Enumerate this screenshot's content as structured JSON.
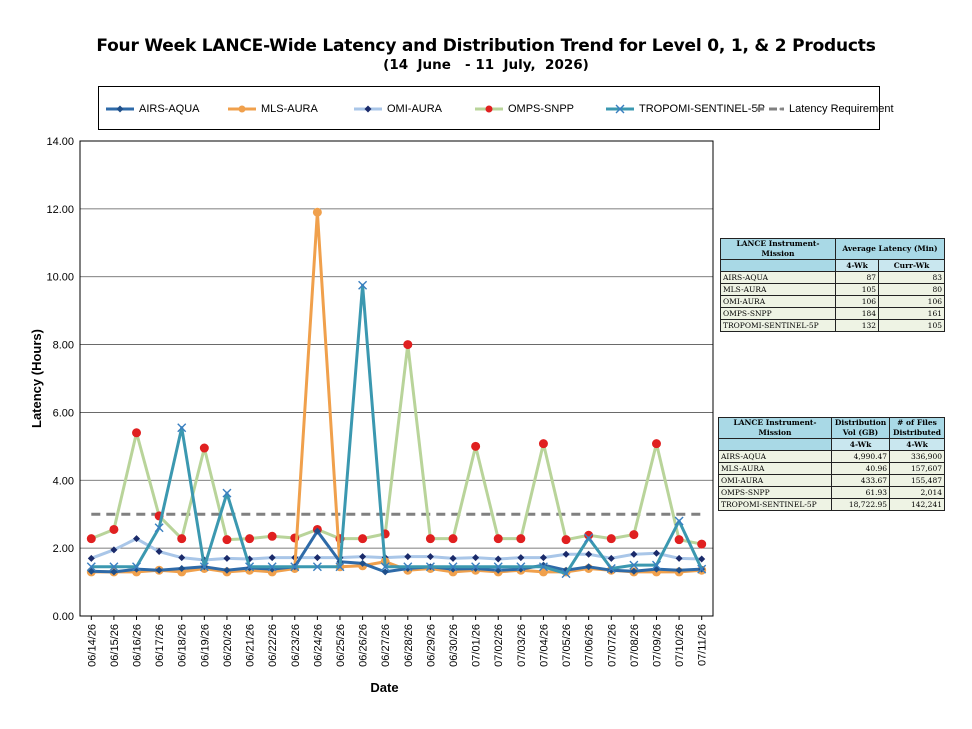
{
  "title": "Four Week LANCE-Wide Latency and Distribution Trend for Level 0, 1, & 2 Products",
  "subtitle": "(14  June   - 11  July,  2026)",
  "legend": [
    {
      "label": "AIRS-AQUA",
      "color": "#2e6aa8",
      "marker": "diamond-icon"
    },
    {
      "label": "MLS-AURA",
      "color": "#f0a04c",
      "marker": "circle-icon"
    },
    {
      "label": "OMI-AURA",
      "color": "#a9c6e8",
      "marker": "diamond-icon"
    },
    {
      "label": "OMPS-SNPP",
      "color": "#b9d49a",
      "marker": "circle-icon"
    },
    {
      "label": "TROPOMI-SENTINEL-5P",
      "color": "#3b98b0",
      "marker": "x-icon"
    },
    {
      "label": "Latency Requirement",
      "color": "#808080",
      "marker": "dash-icon"
    }
  ],
  "chart_data": {
    "type": "line",
    "title": "Four Week LANCE-Wide Latency and Distribution Trend for Level 0, 1, & 2 Products",
    "xlabel": "Date",
    "ylabel": "Latency (Hours)",
    "ylim": [
      0,
      14
    ],
    "y_ticks": [
      "0.00",
      "2.00",
      "4.00",
      "6.00",
      "8.00",
      "10.00",
      "12.00",
      "14.00"
    ],
    "x": [
      "06/14/26",
      "06/15/26",
      "06/16/26",
      "06/17/26",
      "06/18/26",
      "06/19/26",
      "06/20/26",
      "06/21/26",
      "06/22/26",
      "06/23/26",
      "06/24/26",
      "06/25/26",
      "06/26/26",
      "06/27/26",
      "06/28/26",
      "06/29/26",
      "06/30/26",
      "07/01/26",
      "07/02/26",
      "07/03/26",
      "07/04/26",
      "07/05/26",
      "07/06/26",
      "07/07/26",
      "07/08/26",
      "07/09/26",
      "07/10/26",
      "07/11/26"
    ],
    "grid": "horizontal",
    "series": [
      {
        "name": "AIRS-AQUA",
        "color": "#2e6aa8",
        "marker": "diamond",
        "values": [
          1.32,
          1.3,
          1.38,
          1.35,
          1.4,
          1.45,
          1.35,
          1.42,
          1.38,
          1.45,
          2.5,
          1.6,
          1.55,
          1.3,
          1.4,
          1.45,
          1.38,
          1.4,
          1.35,
          1.38,
          1.5,
          1.35,
          1.45,
          1.35,
          1.32,
          1.38,
          1.35,
          1.38
        ]
      },
      {
        "name": "MLS-AURA",
        "color": "#f0a04c",
        "marker": "circle",
        "values": [
          1.3,
          1.3,
          1.3,
          1.35,
          1.3,
          1.4,
          1.3,
          1.35,
          1.3,
          1.4,
          11.9,
          1.45,
          1.48,
          1.6,
          1.35,
          1.4,
          1.3,
          1.35,
          1.3,
          1.35,
          1.3,
          1.3,
          1.4,
          1.35,
          1.3,
          1.3,
          1.3,
          1.35
        ]
      },
      {
        "name": "OMI-AURA",
        "color": "#a9c6e8",
        "marker": "diamond",
        "values": [
          1.7,
          1.95,
          2.28,
          1.9,
          1.72,
          1.65,
          1.7,
          1.68,
          1.72,
          1.72,
          1.72,
          1.72,
          1.75,
          1.72,
          1.75,
          1.75,
          1.7,
          1.72,
          1.68,
          1.72,
          1.72,
          1.82,
          1.82,
          1.7,
          1.82,
          1.85,
          1.7,
          1.68
        ]
      },
      {
        "name": "OMPS-SNPP",
        "color": "#b9d49a",
        "marker": "circle",
        "values": [
          2.28,
          2.55,
          5.4,
          2.95,
          2.28,
          4.95,
          2.25,
          2.28,
          2.35,
          2.3,
          2.55,
          2.28,
          2.28,
          2.42,
          8.0,
          2.28,
          2.28,
          5.0,
          2.28,
          2.28,
          5.08,
          2.25,
          2.38,
          2.28,
          2.4,
          5.08,
          2.25,
          2.12
        ]
      },
      {
        "name": "TROPOMI-SENTINEL-5P",
        "color": "#3b98b0",
        "marker": "x",
        "values": [
          1.45,
          1.45,
          1.45,
          2.6,
          5.55,
          1.45,
          3.62,
          1.45,
          1.45,
          1.45,
          1.45,
          1.45,
          9.75,
          1.45,
          1.45,
          1.45,
          1.45,
          1.45,
          1.45,
          1.45,
          1.45,
          1.25,
          2.3,
          1.4,
          1.5,
          1.5,
          2.8,
          1.38
        ]
      },
      {
        "name": "Latency Requirement",
        "color": "#808080",
        "marker": "none",
        "dashed": true,
        "values": [
          3,
          3,
          3,
          3,
          3,
          3,
          3,
          3,
          3,
          3,
          3,
          3,
          3,
          3,
          3,
          3,
          3,
          3,
          3,
          3,
          3,
          3,
          3,
          3,
          3,
          3,
          3,
          3
        ]
      }
    ]
  },
  "latency_table": {
    "headers": [
      "LANCE Instrument-Mission",
      "Average Latency (Min)"
    ],
    "subheaders": [
      "4-Wk",
      "Curr-Wk"
    ],
    "rows": [
      {
        "name": "AIRS-AQUA",
        "a": "87",
        "b": "83"
      },
      {
        "name": "MLS-AURA",
        "a": "105",
        "b": "80"
      },
      {
        "name": "OMI-AURA",
        "a": "106",
        "b": "106"
      },
      {
        "name": "OMPS-SNPP",
        "a": "184",
        "b": "161"
      },
      {
        "name": "TROPOMI-SENTINEL-5P",
        "a": "132",
        "b": "105"
      }
    ]
  },
  "distribution_table": {
    "headers": [
      "LANCE Instrument-Mission",
      "Distribution Vol (GB)",
      "# of Files Distributed"
    ],
    "subheaders": [
      "4-Wk",
      "4-Wk"
    ],
    "rows": [
      {
        "name": "AIRS-AQUA",
        "a": "4,990.47",
        "b": "336,900"
      },
      {
        "name": "MLS-AURA",
        "a": "40.96",
        "b": "157,607"
      },
      {
        "name": "OMI-AURA",
        "a": "433.67",
        "b": "155,487"
      },
      {
        "name": "OMPS-SNPP",
        "a": "61.93",
        "b": "2,014"
      },
      {
        "name": "TROPOMI-SENTINEL-5P",
        "a": "18,722.95",
        "b": "142,241"
      }
    ]
  }
}
